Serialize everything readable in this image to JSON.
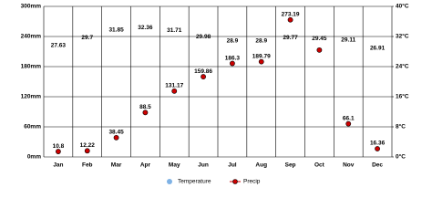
{
  "chart_data": {
    "type": "line",
    "categories": [
      "Jan",
      "Feb",
      "Mar",
      "Apr",
      "May",
      "Jun",
      "Jul",
      "Aug",
      "Sep",
      "Oct",
      "Nov",
      "Dec"
    ],
    "series": [
      {
        "name": "Temperature",
        "color": "#7fb2e5",
        "axis": "y2",
        "values": [
          27.63,
          29.7,
          31.85,
          32.36,
          31.71,
          29.98,
          28.9,
          28.9,
          29.77,
          29.45,
          29.11,
          26.91
        ]
      },
      {
        "name": "Precip",
        "color": "#cc0000",
        "values": [
          10.8,
          12.22,
          38.45,
          88.5,
          131.17,
          159.86,
          186.3,
          189.79,
          273.19,
          213,
          66.1,
          16.36
        ],
        "value_labels": [
          "10.8",
          "12.22",
          "38.45",
          "88.5",
          "131.17",
          "159.86",
          "186.3",
          "189.79",
          "273.19",
          null,
          "66.1",
          "16.36"
        ]
      }
    ],
    "ylim": [
      0,
      300
    ],
    "yticks": [
      {
        "value": 0,
        "label": "0mm"
      },
      {
        "value": 60,
        "label": "60mm"
      },
      {
        "value": 120,
        "label": "120mm"
      },
      {
        "value": 180,
        "label": "180mm"
      },
      {
        "value": 240,
        "label": "240mm"
      },
      {
        "value": 300,
        "label": "300mm"
      }
    ],
    "y2lim": [
      0,
      40
    ],
    "y2ticks": [
      {
        "value": 0,
        "label": "0°C"
      },
      {
        "value": 8,
        "label": "8°C"
      },
      {
        "value": 16,
        "label": "16°C"
      },
      {
        "value": 24,
        "label": "24°C"
      },
      {
        "value": 32,
        "label": "32°C"
      },
      {
        "value": 40,
        "label": "40°C"
      }
    ],
    "grid": true
  }
}
